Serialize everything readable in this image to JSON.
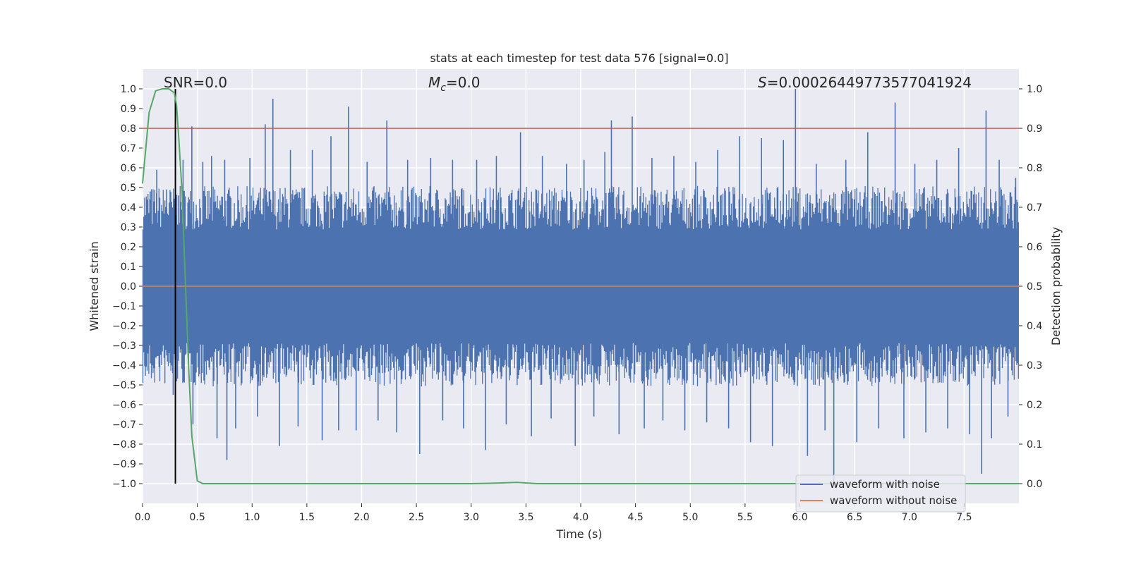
{
  "chart_data": {
    "type": "line",
    "title": "stats at each timestep for test data 576 [signal=0.0]",
    "xlabel": "Time (s)",
    "ylabel": "Whitened strain",
    "y2label": "Detection probability",
    "xlim": [
      0.0,
      8.0
    ],
    "ylim": [
      -1.1,
      1.1
    ],
    "y2lim": [
      -0.05,
      1.05
    ],
    "x_ticks": [
      0.0,
      0.5,
      1.0,
      1.5,
      2.0,
      2.5,
      3.0,
      3.5,
      4.0,
      4.5,
      5.0,
      5.5,
      6.0,
      6.5,
      7.0,
      7.5
    ],
    "y_ticks": [
      1.0,
      0.9,
      0.8,
      0.7,
      0.6,
      0.5,
      0.4,
      0.3,
      0.2,
      0.1,
      0.0,
      -0.1,
      -0.2,
      -0.3,
      -0.4,
      -0.5,
      -0.6,
      -0.7,
      -0.8,
      -0.9,
      -1.0
    ],
    "y2_ticks": [
      1.0,
      0.9,
      0.8,
      0.7,
      0.6,
      0.5,
      0.4,
      0.3,
      0.2,
      0.1,
      0.0
    ],
    "annotations": {
      "snr": "SNR=0.0",
      "mc_symbol": "M",
      "mc_sub": "c",
      "mc_value": "=0.0",
      "s_symbol": "S",
      "s_value": "=0.00026449773577041924"
    },
    "threshold": {
      "value": 0.9,
      "axis": "right",
      "color": "#c44e52"
    },
    "marker_line": {
      "x": 0.3,
      "color": "#000000"
    },
    "series": [
      {
        "name": "waveform with noise",
        "color": "#4c72b0",
        "kind": "dense-noise",
        "core_amplitude": 0.4,
        "spikes": [
          [
            0.07,
            0.48
          ],
          [
            0.13,
            0.59
          ],
          [
            0.22,
            0.49
          ],
          [
            0.28,
            -0.55
          ],
          [
            0.33,
            0.46
          ],
          [
            0.37,
            0.64
          ],
          [
            0.45,
            0.81
          ],
          [
            0.46,
            -0.7
          ],
          [
            0.55,
            0.63
          ],
          [
            0.63,
            0.66
          ],
          [
            0.68,
            -0.77
          ],
          [
            0.75,
            0.64
          ],
          [
            0.77,
            -0.88
          ],
          [
            0.85,
            -0.72
          ],
          [
            0.98,
            0.65
          ],
          [
            1.05,
            -0.66
          ],
          [
            1.12,
            0.82
          ],
          [
            1.19,
            0.95
          ],
          [
            1.25,
            -0.81
          ],
          [
            1.35,
            0.69
          ],
          [
            1.42,
            -0.71
          ],
          [
            1.55,
            0.69
          ],
          [
            1.64,
            -0.78
          ],
          [
            1.72,
            0.76
          ],
          [
            1.79,
            -0.73
          ],
          [
            1.88,
            0.91
          ],
          [
            1.95,
            -0.73
          ],
          [
            2.05,
            0.63
          ],
          [
            2.15,
            -0.68
          ],
          [
            2.23,
            0.84
          ],
          [
            2.32,
            -0.74
          ],
          [
            2.42,
            0.64
          ],
          [
            2.53,
            -0.85
          ],
          [
            2.63,
            0.65
          ],
          [
            2.74,
            -0.68
          ],
          [
            2.83,
            0.64
          ],
          [
            2.93,
            -0.72
          ],
          [
            3.05,
            0.64
          ],
          [
            3.13,
            -0.83
          ],
          [
            3.23,
            0.66
          ],
          [
            3.32,
            -0.7
          ],
          [
            3.45,
            0.78
          ],
          [
            3.55,
            -0.76
          ],
          [
            3.65,
            0.66
          ],
          [
            3.73,
            -0.67
          ],
          [
            3.87,
            0.62
          ],
          [
            3.95,
            -0.81
          ],
          [
            4.03,
            0.64
          ],
          [
            4.12,
            -0.66
          ],
          [
            4.22,
            0.68
          ],
          [
            4.28,
            0.84
          ],
          [
            4.35,
            -0.75
          ],
          [
            4.47,
            0.86
          ],
          [
            4.58,
            -0.72
          ],
          [
            4.65,
            0.65
          ],
          [
            4.75,
            -0.68
          ],
          [
            4.85,
            0.66
          ],
          [
            4.95,
            -0.73
          ],
          [
            5.05,
            0.63
          ],
          [
            5.15,
            -0.69
          ],
          [
            5.25,
            0.69
          ],
          [
            5.35,
            -0.72
          ],
          [
            5.45,
            0.76
          ],
          [
            5.55,
            -0.79
          ],
          [
            5.65,
            0.75
          ],
          [
            5.75,
            -0.81
          ],
          [
            5.85,
            0.74
          ],
          [
            5.96,
            1.0
          ],
          [
            6.07,
            -0.86
          ],
          [
            6.15,
            0.62
          ],
          [
            6.23,
            -0.73
          ],
          [
            6.31,
            -1.0
          ],
          [
            6.42,
            0.64
          ],
          [
            6.52,
            -0.79
          ],
          [
            6.62,
            0.78
          ],
          [
            6.72,
            -0.72
          ],
          [
            6.87,
            0.93
          ],
          [
            6.95,
            -0.77
          ],
          [
            7.05,
            0.62
          ],
          [
            7.15,
            -0.74
          ],
          [
            7.25,
            0.64
          ],
          [
            7.35,
            -0.72
          ],
          [
            7.45,
            0.7
          ],
          [
            7.55,
            -0.75
          ],
          [
            7.66,
            -0.95
          ],
          [
            7.7,
            0.89
          ],
          [
            7.75,
            -0.77
          ],
          [
            7.82,
            0.64
          ],
          [
            7.9,
            -0.66
          ],
          [
            7.97,
            0.55
          ]
        ]
      },
      {
        "name": "waveform without noise",
        "color": "#dd8452",
        "x": [
          0.0,
          8.0
        ],
        "y": [
          0.0,
          0.0
        ]
      },
      {
        "name": "detection probability",
        "color": "#55a868",
        "axis": "right",
        "x": [
          0.0,
          0.06,
          0.12,
          0.18,
          0.24,
          0.29,
          0.31,
          0.33,
          0.36,
          0.39,
          0.42,
          0.45,
          0.5,
          0.55,
          0.65,
          1.0,
          2.0,
          3.0,
          3.2,
          3.42,
          3.6,
          4.0,
          5.0,
          6.0,
          7.0,
          8.0
        ],
        "y": [
          0.76,
          0.94,
          0.995,
          1.0,
          1.0,
          0.99,
          0.96,
          0.88,
          0.74,
          0.52,
          0.3,
          0.12,
          0.007,
          0.0,
          0.0,
          0.0,
          0.0,
          0.0,
          0.001,
          0.003,
          0.0,
          0.0,
          0.0,
          0.0,
          0.0,
          0.0
        ]
      }
    ]
  }
}
